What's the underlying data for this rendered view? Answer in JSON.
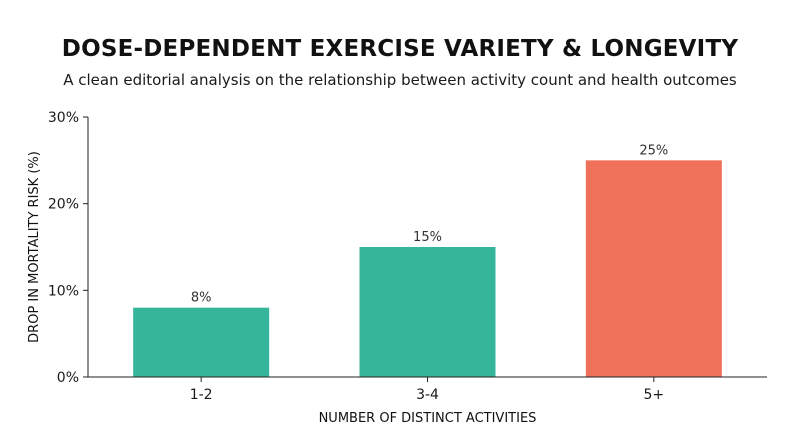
{
  "chart_data": {
    "type": "bar",
    "title": "DOSE-DEPENDENT EXERCISE VARIETY & LONGEVITY",
    "subtitle": "A clean editorial analysis on the relationship between activity count and health outcomes",
    "xlabel": "NUMBER OF DISTINCT ACTIVITIES",
    "ylabel": "DROP IN MORTALITY RISK (%)",
    "categories": [
      "1-2",
      "3-4",
      "5+"
    ],
    "values": [
      8,
      15,
      25
    ],
    "value_labels": [
      "8%",
      "15%",
      "25%"
    ],
    "bar_colors": [
      "#35b59a",
      "#35b59a",
      "#f0715a"
    ],
    "ylim": [
      0,
      30
    ],
    "yticks": [
      0,
      10,
      20,
      30
    ],
    "ytick_labels": [
      "0%",
      "10%",
      "20%",
      "30%"
    ],
    "grid": false,
    "legend": "none"
  }
}
